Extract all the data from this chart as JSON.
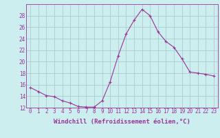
{
  "hours": [
    0,
    1,
    2,
    3,
    4,
    5,
    6,
    7,
    8,
    9,
    10,
    11,
    12,
    13,
    14,
    15,
    16,
    17,
    18,
    19,
    20,
    21,
    22,
    23
  ],
  "values": [
    15.5,
    14.8,
    14.1,
    13.9,
    13.2,
    12.8,
    12.2,
    12.1,
    12.1,
    13.2,
    16.5,
    21.0,
    24.8,
    27.2,
    29.1,
    28.0,
    25.2,
    23.5,
    22.5,
    20.5,
    18.2,
    18.0,
    17.8,
    17.5
  ],
  "line_color": "#993399",
  "marker": "+",
  "bg_color": "#cceeee",
  "grid_color": "#aacccc",
  "xlabel": "Windchill (Refroidissement éolien,°C)",
  "ylim": [
    12,
    30
  ],
  "yticks": [
    12,
    14,
    16,
    18,
    20,
    22,
    24,
    26,
    28
  ],
  "tick_fontsize": 5.5,
  "label_fontsize": 6.5
}
